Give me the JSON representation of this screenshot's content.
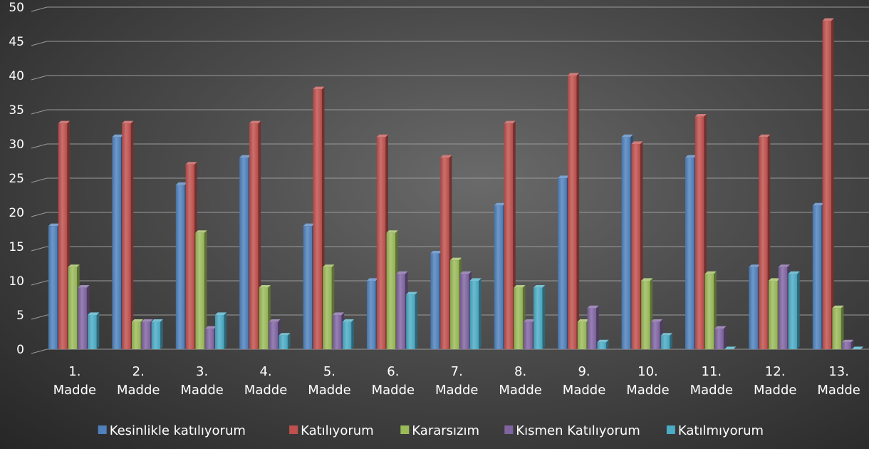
{
  "chart_data": {
    "type": "bar",
    "title": "",
    "xlabel": "",
    "ylabel": "",
    "ylim": [
      0,
      50
    ],
    "yticks": [
      0,
      5,
      10,
      15,
      20,
      25,
      30,
      35,
      40,
      45,
      50
    ],
    "grid": true,
    "legend_position": "bottom",
    "categories": [
      [
        "1.",
        "Madde"
      ],
      [
        "2.",
        "Madde"
      ],
      [
        "3.",
        "Madde"
      ],
      [
        "4.",
        "Madde"
      ],
      [
        "5.",
        "Madde"
      ],
      [
        "6.",
        "Madde"
      ],
      [
        "7.",
        "Madde"
      ],
      [
        "8.",
        "Madde"
      ],
      [
        "9.",
        "Madde"
      ],
      [
        "10.",
        "Madde"
      ],
      [
        "11.",
        "Madde"
      ],
      [
        "12.",
        "Madde"
      ],
      [
        "13.",
        "Madde"
      ]
    ],
    "series": [
      {
        "name": "Kesinlikle katılıyorum",
        "color": "#4f81bd",
        "values": [
          18,
          31,
          24,
          28,
          18,
          10,
          14,
          21,
          25,
          31,
          28,
          12,
          21
        ]
      },
      {
        "name": "Katılıyorum",
        "color": "#c0504d",
        "values": [
          33,
          33,
          27,
          33,
          38,
          31,
          28,
          33,
          40,
          30,
          34,
          31,
          48
        ]
      },
      {
        "name": "Kararsızım",
        "color": "#9bbb59",
        "values": [
          12,
          4,
          17,
          9,
          12,
          17,
          13,
          9,
          4,
          10,
          11,
          10,
          6
        ]
      },
      {
        "name": "Kısmen Katılıyorum",
        "color": "#8064a2",
        "values": [
          9,
          4,
          3,
          4,
          5,
          11,
          11,
          4,
          6,
          4,
          3,
          12,
          1
        ]
      },
      {
        "name": "Katılmıyorum",
        "color": "#4bacc6",
        "values": [
          5,
          4,
          5,
          2,
          4,
          8,
          10,
          9,
          1,
          2,
          0,
          11,
          0
        ]
      }
    ]
  }
}
